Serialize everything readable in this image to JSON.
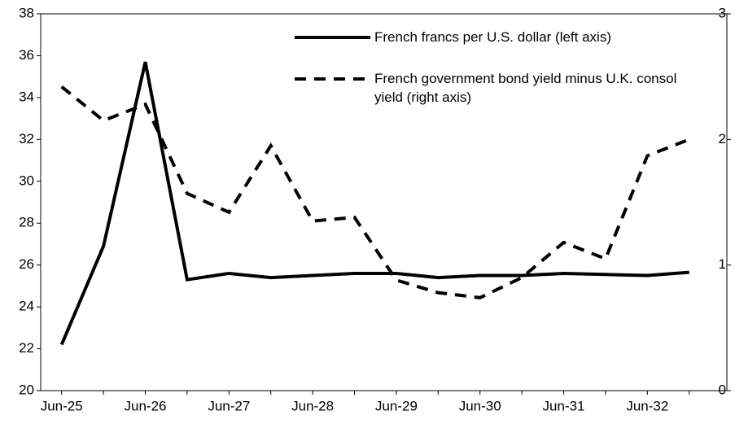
{
  "chart_data": {
    "type": "line",
    "categories": [
      "Jun-25",
      null,
      "Jun-26",
      null,
      "Jun-27",
      null,
      "Jun-28",
      null,
      "Jun-29",
      null,
      "Jun-30",
      null,
      "Jun-31",
      null,
      "Jun-32",
      null
    ],
    "series": [
      {
        "name": "French francs per U.S. dollar (left axis)",
        "color": "#000000",
        "dash": false,
        "values": [
          22.2,
          26.9,
          35.7,
          25.3,
          25.6,
          25.4,
          25.5,
          25.6,
          25.6,
          25.4,
          25.5,
          25.5,
          25.6,
          25.55,
          25.5,
          25.65
        ]
      },
      {
        "name": "French government bond yield minus U.K. consol yield (right axis)",
        "color": "#000000",
        "dash": true,
        "axis": "y2",
        "values": [
          2.42,
          2.15,
          2.28,
          1.57,
          1.42,
          1.95,
          1.35,
          1.38,
          0.88,
          0.78,
          0.74,
          0.9,
          1.18,
          1.05,
          1.87,
          2.0
        ]
      }
    ],
    "ylim": [
      20,
      38
    ],
    "yticks": [
      20,
      22,
      24,
      26,
      28,
      30,
      32,
      34,
      36,
      38
    ],
    "y2lim": [
      0,
      3
    ],
    "y2ticks": [
      0,
      1,
      2,
      3
    ]
  }
}
